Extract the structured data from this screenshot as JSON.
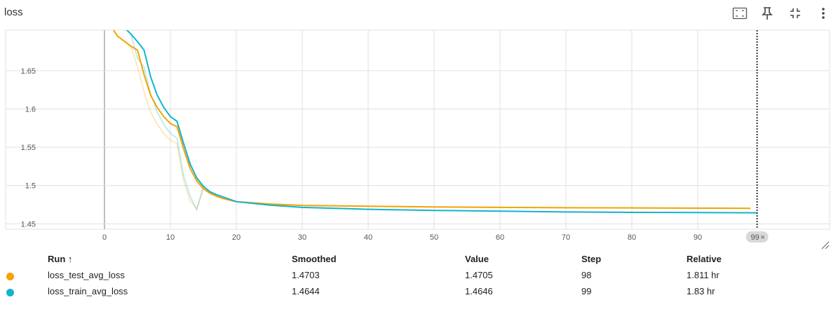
{
  "title": "loss",
  "toolbar": {
    "fit_icon": "fit-domain-icon",
    "pin_icon": "pin-icon",
    "collapse_icon": "collapse-icon",
    "more_icon": "more-vert-icon"
  },
  "hover_badge": "99",
  "columns": {
    "run": "Run ↑",
    "smoothed": "Smoothed",
    "value": "Value",
    "step": "Step",
    "relative": "Relative"
  },
  "runs": [
    {
      "name": "loss_test_avg_loss",
      "smoothed": "1.4703",
      "value": "1.4705",
      "step": "98",
      "relative": "1.811 hr",
      "color": "#f5a300"
    },
    {
      "name": "loss_train_avg_loss",
      "smoothed": "1.4644",
      "value": "1.4646",
      "step": "99",
      "relative": "1.83 hr",
      "color": "#12b5cb"
    }
  ],
  "chart_data": {
    "type": "line",
    "title": "loss",
    "xlim": [
      -15,
      110
    ],
    "ylim": [
      1.443,
      1.703
    ],
    "x_ticks": [
      0,
      10,
      20,
      30,
      40,
      50,
      60,
      70,
      80,
      90
    ],
    "y_ticks": [
      1.45,
      1.5,
      1.55,
      1.6,
      1.65
    ],
    "grid": true,
    "hover_step": 99,
    "series": [
      {
        "name": "loss_test_avg_loss",
        "color": "#f5a300",
        "x": [
          0,
          2,
          4,
          5,
          6,
          7,
          8,
          9,
          10,
          11,
          12,
          13,
          14,
          15,
          16,
          17,
          18,
          20,
          25,
          30,
          40,
          50,
          60,
          70,
          80,
          90,
          98
        ],
        "y": [
          1.72,
          1.695,
          1.682,
          1.677,
          1.645,
          1.618,
          1.602,
          1.59,
          1.581,
          1.577,
          1.548,
          1.522,
          1.506,
          1.496,
          1.49,
          1.486,
          1.483,
          1.479,
          1.476,
          1.474,
          1.473,
          1.472,
          1.4715,
          1.471,
          1.4708,
          1.4705,
          1.4703
        ]
      },
      {
        "name": "loss_train_avg_loss",
        "color": "#12b5cb",
        "x": [
          0,
          2,
          4,
          5,
          6,
          7,
          8,
          9,
          10,
          11,
          12,
          13,
          14,
          15,
          16,
          17,
          18,
          20,
          25,
          30,
          40,
          50,
          60,
          70,
          80,
          90,
          99
        ],
        "y": [
          1.735,
          1.715,
          1.698,
          1.688,
          1.677,
          1.642,
          1.618,
          1.602,
          1.59,
          1.584,
          1.555,
          1.528,
          1.51,
          1.499,
          1.492,
          1.488,
          1.485,
          1.479,
          1.4745,
          1.4715,
          1.469,
          1.4675,
          1.4665,
          1.4655,
          1.465,
          1.4647,
          1.4644
        ]
      }
    ]
  }
}
